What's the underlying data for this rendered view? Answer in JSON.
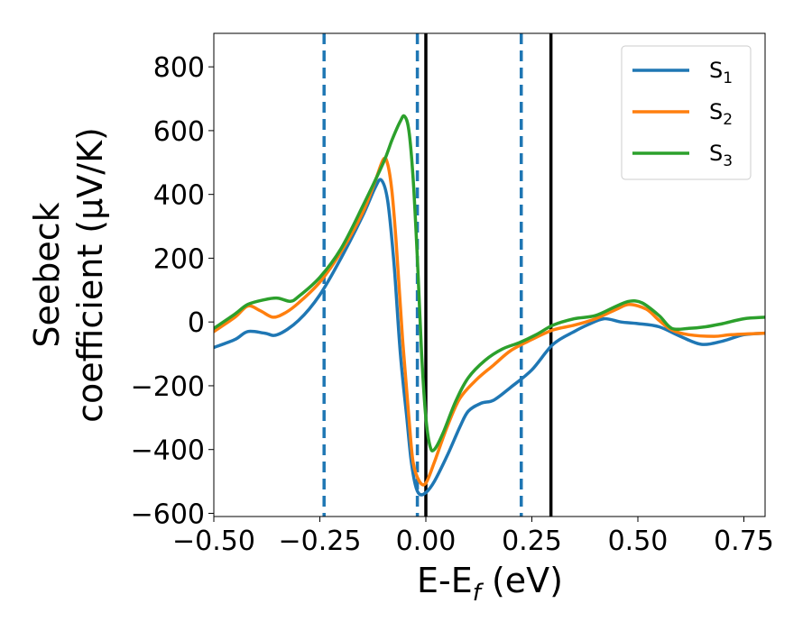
{
  "chart_data": {
    "type": "line",
    "xlabel": "E-E",
    "xlabel_sub": "f",
    "xlabel_unit": " (eV)",
    "ylabel_line1": "Seebeck",
    "ylabel_line2": "coefficient  (μV/K)",
    "xlim": [
      -0.5,
      0.8
    ],
    "ylim": [
      -610,
      905
    ],
    "xticks": [
      -0.5,
      -0.25,
      0.0,
      0.25,
      0.5,
      0.75
    ],
    "xtick_labels": [
      "−0.50",
      "−0.25",
      "0.00",
      "0.25",
      "0.50",
      "0.75"
    ],
    "yticks": [
      -600,
      -400,
      -200,
      0,
      200,
      400,
      600,
      800
    ],
    "ytick_labels": [
      "−600",
      "−400",
      "−200",
      "0",
      "200",
      "400",
      "600",
      "800"
    ],
    "grid": false,
    "legend_position": "top-right",
    "vlines": [
      {
        "x": -0.24,
        "style": "dashed",
        "color": "#1f77b4"
      },
      {
        "x": -0.02,
        "style": "dashed",
        "color": "#1f77b4"
      },
      {
        "x": 0.225,
        "style": "dashed",
        "color": "#1f77b4"
      },
      {
        "x": 0.0,
        "style": "solid",
        "color": "#000000"
      },
      {
        "x": 0.295,
        "style": "solid",
        "color": "#000000"
      }
    ],
    "series": [
      {
        "name": "S",
        "sub": "1",
        "color": "#1f77b4",
        "points": [
          [
            -0.5,
            -80
          ],
          [
            -0.45,
            -55
          ],
          [
            -0.42,
            -30
          ],
          [
            -0.38,
            -35
          ],
          [
            -0.35,
            -40
          ],
          [
            -0.3,
            5
          ],
          [
            -0.25,
            85
          ],
          [
            -0.2,
            200
          ],
          [
            -0.15,
            330
          ],
          [
            -0.12,
            420
          ],
          [
            -0.105,
            445
          ],
          [
            -0.09,
            380
          ],
          [
            -0.075,
            180
          ],
          [
            -0.06,
            -100
          ],
          [
            -0.045,
            -300
          ],
          [
            -0.035,
            -430
          ],
          [
            -0.025,
            -510
          ],
          [
            -0.015,
            -540
          ],
          [
            0.0,
            -535
          ],
          [
            0.02,
            -500
          ],
          [
            0.05,
            -420
          ],
          [
            0.08,
            -330
          ],
          [
            0.1,
            -280
          ],
          [
            0.13,
            -255
          ],
          [
            0.16,
            -245
          ],
          [
            0.2,
            -205
          ],
          [
            0.25,
            -150
          ],
          [
            0.3,
            -70
          ],
          [
            0.35,
            -30
          ],
          [
            0.38,
            -10
          ],
          [
            0.42,
            10
          ],
          [
            0.46,
            0
          ],
          [
            0.5,
            -5
          ],
          [
            0.55,
            -15
          ],
          [
            0.6,
            -45
          ],
          [
            0.65,
            -70
          ],
          [
            0.7,
            -60
          ],
          [
            0.75,
            -40
          ],
          [
            0.8,
            -35
          ]
        ]
      },
      {
        "name": "S",
        "sub": "2",
        "color": "#ff7f0e",
        "points": [
          [
            -0.5,
            -30
          ],
          [
            -0.45,
            15
          ],
          [
            -0.42,
            50
          ],
          [
            -0.39,
            35
          ],
          [
            -0.36,
            15
          ],
          [
            -0.33,
            30
          ],
          [
            -0.3,
            60
          ],
          [
            -0.25,
            125
          ],
          [
            -0.2,
            220
          ],
          [
            -0.15,
            340
          ],
          [
            -0.12,
            440
          ],
          [
            -0.1,
            510
          ],
          [
            -0.09,
            495
          ],
          [
            -0.08,
            410
          ],
          [
            -0.07,
            250
          ],
          [
            -0.055,
            -50
          ],
          [
            -0.04,
            -300
          ],
          [
            -0.03,
            -440
          ],
          [
            -0.015,
            -500
          ],
          [
            0.0,
            -505
          ],
          [
            0.02,
            -440
          ],
          [
            0.05,
            -330
          ],
          [
            0.08,
            -240
          ],
          [
            0.12,
            -180
          ],
          [
            0.16,
            -135
          ],
          [
            0.2,
            -90
          ],
          [
            0.25,
            -55
          ],
          [
            0.3,
            -25
          ],
          [
            0.35,
            -10
          ],
          [
            0.4,
            10
          ],
          [
            0.45,
            40
          ],
          [
            0.48,
            55
          ],
          [
            0.52,
            40
          ],
          [
            0.55,
            5
          ],
          [
            0.58,
            -25
          ],
          [
            0.62,
            -40
          ],
          [
            0.68,
            -45
          ],
          [
            0.72,
            -40
          ],
          [
            0.8,
            -35
          ]
        ]
      },
      {
        "name": "S",
        "sub": "3",
        "color": "#2ca02c",
        "points": [
          [
            -0.5,
            -20
          ],
          [
            -0.45,
            25
          ],
          [
            -0.42,
            55
          ],
          [
            -0.38,
            70
          ],
          [
            -0.35,
            75
          ],
          [
            -0.32,
            65
          ],
          [
            -0.3,
            80
          ],
          [
            -0.25,
            140
          ],
          [
            -0.2,
            230
          ],
          [
            -0.15,
            360
          ],
          [
            -0.1,
            500
          ],
          [
            -0.08,
            570
          ],
          [
            -0.06,
            630
          ],
          [
            -0.05,
            645
          ],
          [
            -0.04,
            600
          ],
          [
            -0.03,
            450
          ],
          [
            -0.02,
            200
          ],
          [
            -0.01,
            -100
          ],
          [
            0.0,
            -300
          ],
          [
            0.01,
            -390
          ],
          [
            0.02,
            -400
          ],
          [
            0.04,
            -350
          ],
          [
            0.07,
            -250
          ],
          [
            0.1,
            -175
          ],
          [
            0.14,
            -120
          ],
          [
            0.18,
            -85
          ],
          [
            0.22,
            -65
          ],
          [
            0.26,
            -40
          ],
          [
            0.3,
            -10
          ],
          [
            0.35,
            10
          ],
          [
            0.4,
            20
          ],
          [
            0.45,
            50
          ],
          [
            0.48,
            65
          ],
          [
            0.51,
            60
          ],
          [
            0.55,
            20
          ],
          [
            0.58,
            -20
          ],
          [
            0.62,
            -20
          ],
          [
            0.66,
            -15
          ],
          [
            0.7,
            -5
          ],
          [
            0.75,
            10
          ],
          [
            0.8,
            15
          ]
        ]
      }
    ]
  }
}
